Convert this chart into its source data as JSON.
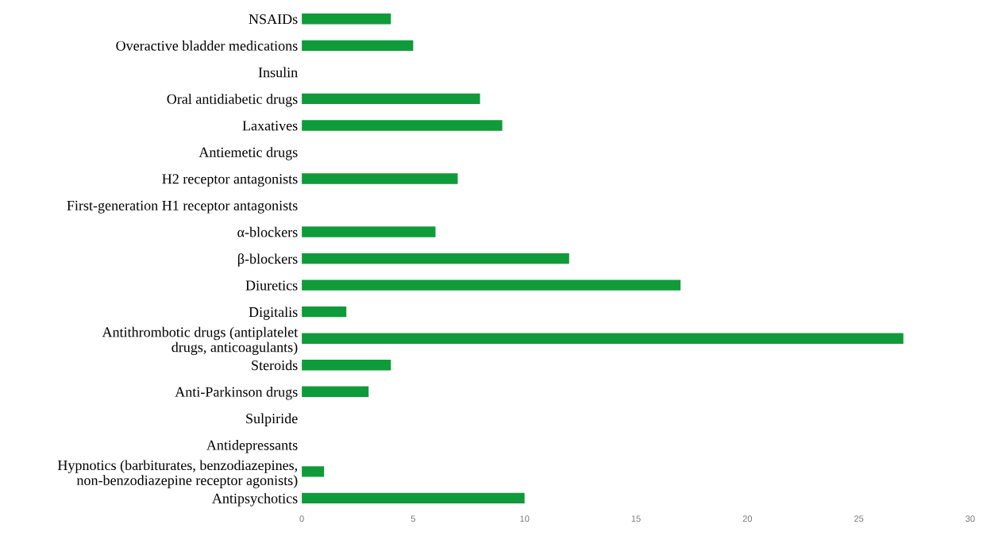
{
  "chart_data": {
    "type": "bar",
    "orientation": "horizontal",
    "categories": [
      "NSAIDs",
      "Overactive bladder medications",
      "Insulin",
      "Oral antidiabetic drugs",
      "Laxatives",
      "Antiemetic drugs",
      "H2 receptor antagonists",
      "First-generation H1 receptor antagonists",
      "α-blockers",
      "β-blockers",
      "Diuretics",
      "Digitalis",
      "Antithrombotic drugs (antiplatelet\ndrugs, anticoagulants)",
      "Steroids",
      "Anti-Parkinson drugs",
      "Sulpiride",
      "Antidepressants",
      "Hypnotics (barbiturates, benzodiazepines,\nnon-benzodiazepine receptor agonists)",
      "Antipsychotics"
    ],
    "values": [
      4,
      5,
      0,
      8,
      9,
      0,
      7,
      0,
      6,
      12,
      17,
      2,
      27,
      4,
      3,
      0,
      0,
      1,
      10
    ],
    "color": "#0f9b3a",
    "xlim": [
      0,
      30
    ],
    "xticks": [
      0,
      5,
      10,
      15,
      20,
      25,
      30
    ],
    "grid": false,
    "legend": false
  }
}
